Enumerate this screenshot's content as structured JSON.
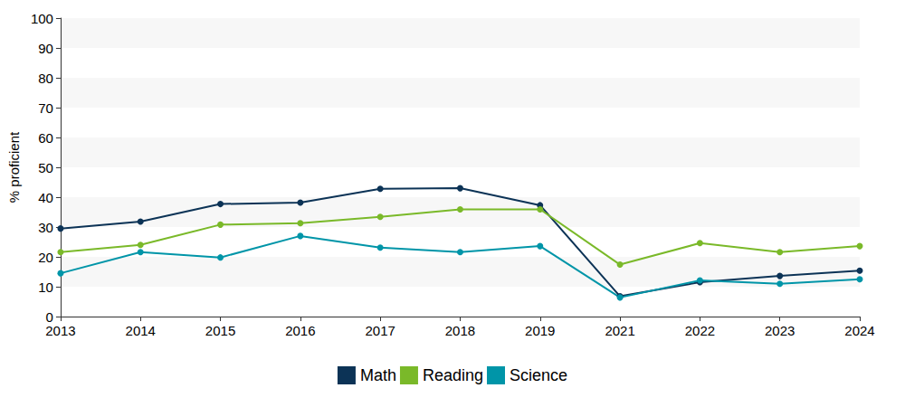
{
  "chart_data": {
    "type": "line",
    "y_label": "% proficient",
    "categories": [
      "2013",
      "2014",
      "2015",
      "2016",
      "2017",
      "2018",
      "2019",
      "2021",
      "2022",
      "2023",
      "2024"
    ],
    "series": [
      {
        "name": "Math",
        "color": "#0c3356",
        "values": [
          29.5,
          31.8,
          37.7,
          38.2,
          42.8,
          43.0,
          37.3,
          6.8,
          11.5,
          13.6,
          15.4
        ]
      },
      {
        "name": "Reading",
        "color": "#7ab929",
        "values": [
          21.6,
          24.0,
          30.8,
          31.3,
          33.4,
          35.9,
          35.9,
          17.4,
          24.6,
          21.6,
          23.6
        ]
      },
      {
        "name": "Science",
        "color": "#0095a8",
        "values": [
          14.5,
          21.6,
          19.8,
          27.0,
          23.1,
          21.6,
          23.6,
          6.4,
          12.1,
          11.0,
          12.5
        ]
      }
    ],
    "ylim": [
      0,
      100
    ],
    "yticks": [
      0,
      10,
      20,
      30,
      40,
      50,
      60,
      70,
      80,
      90,
      100
    ],
    "grid": true,
    "legend": "bottom",
    "marker": "circle",
    "line_style": "solid"
  }
}
